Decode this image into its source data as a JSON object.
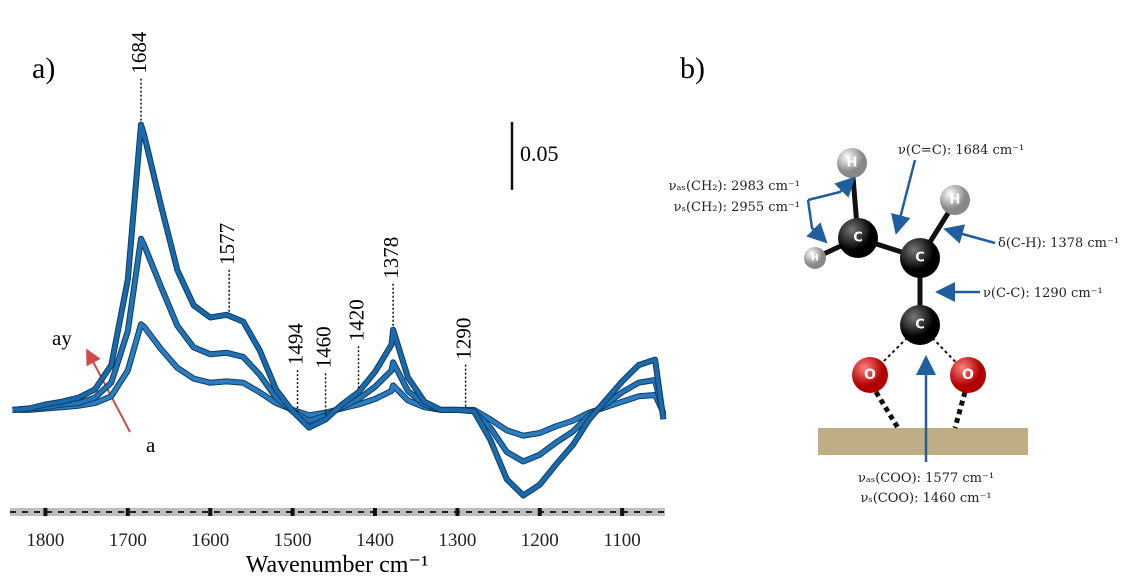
{
  "chart_data": {
    "type": "line",
    "panel_label": "a)",
    "xlabel": "Wavenumber cm⁻¹",
    "xlim": [
      1843,
      1048
    ],
    "ylim": [
      -0.07,
      0.22
    ],
    "xticks": [
      1800,
      1700,
      1600,
      1500,
      1400,
      1300,
      1200,
      1100
    ],
    "x": [
      1840,
      1820,
      1800,
      1780,
      1760,
      1740,
      1720,
      1700,
      1684,
      1680,
      1660,
      1640,
      1620,
      1600,
      1580,
      1560,
      1540,
      1520,
      1500,
      1480,
      1460,
      1440,
      1420,
      1400,
      1380,
      1378,
      1360,
      1340,
      1320,
      1300,
      1280,
      1260,
      1240,
      1220,
      1200,
      1180,
      1160,
      1140,
      1120,
      1100,
      1080,
      1060,
      1050
    ],
    "series": [
      {
        "color": "#2b7cc0",
        "values": [
          0,
          0,
          0.001,
          0.002,
          0.003,
          0.005,
          0.01,
          0.029,
          0.063,
          0.061,
          0.045,
          0.031,
          0.023,
          0.02,
          0.021,
          0.02,
          0.013,
          0.005,
          0,
          -0.004,
          -0.002,
          0.001,
          0.004,
          0.008,
          0.014,
          0.018,
          0.007,
          0.002,
          0,
          0,
          0,
          -0.007,
          -0.015,
          -0.019,
          -0.017,
          -0.012,
          -0.008,
          -0.002,
          0.002,
          0.006,
          0.01,
          0.011,
          -0.002
        ]
      },
      {
        "color": "#2474b5",
        "values": [
          0,
          0.001,
          0.002,
          0.004,
          0.005,
          0.009,
          0.02,
          0.058,
          0.126,
          0.121,
          0.091,
          0.062,
          0.046,
          0.041,
          0.042,
          0.039,
          0.026,
          0.009,
          -0.001,
          -0.008,
          -0.004,
          0.002,
          0.008,
          0.017,
          0.029,
          0.035,
          0.014,
          0.004,
          0,
          0,
          -0.001,
          -0.013,
          -0.031,
          -0.038,
          -0.033,
          -0.024,
          -0.016,
          -0.004,
          0.004,
          0.013,
          0.02,
          0.022,
          -0.004
        ]
      },
      {
        "color": "#1a69ab",
        "values": [
          0,
          0.001,
          0.004,
          0.006,
          0.009,
          0.015,
          0.033,
          0.096,
          0.21,
          0.202,
          0.151,
          0.103,
          0.077,
          0.068,
          0.07,
          0.065,
          0.044,
          0.015,
          -0.001,
          -0.013,
          -0.007,
          0.004,
          0.013,
          0.028,
          0.048,
          0.059,
          0.024,
          0.006,
          0,
          0,
          -0.001,
          -0.022,
          -0.051,
          -0.063,
          -0.055,
          -0.04,
          -0.026,
          -0.007,
          0.007,
          0.021,
          0.033,
          0.037,
          -0.007
        ]
      }
    ],
    "annotations": [
      {
        "label": "1684",
        "x": 1684
      },
      {
        "label": "1577",
        "x": 1577
      },
      {
        "label": "1494",
        "x": 1494
      },
      {
        "label": "1460",
        "x": 1460
      },
      {
        "label": "1420",
        "x": 1420
      },
      {
        "label": "1378",
        "x": 1378
      },
      {
        "label": "1290",
        "x": 1290
      }
    ],
    "scale_bar": 0.05,
    "arrow_labels": {
      "start": "a",
      "end": "ay"
    }
  },
  "diagram": {
    "panel_label": "b)",
    "atoms": [
      "H",
      "H",
      "H",
      "C",
      "C",
      "C",
      "O",
      "O"
    ],
    "labels": [
      "νₐₛ(CH₂): 2983 cm⁻¹",
      "νₛ(CH₂): 2955 cm⁻¹",
      "ν(C=C): 1684 cm⁻¹",
      "δ(C-H): 1378 cm⁻¹",
      "ν(C-C): 1290 cm⁻¹",
      "νₐₛ(COO): 1577 cm⁻¹",
      "νₛ(COO): 1460 cm⁻¹"
    ]
  }
}
